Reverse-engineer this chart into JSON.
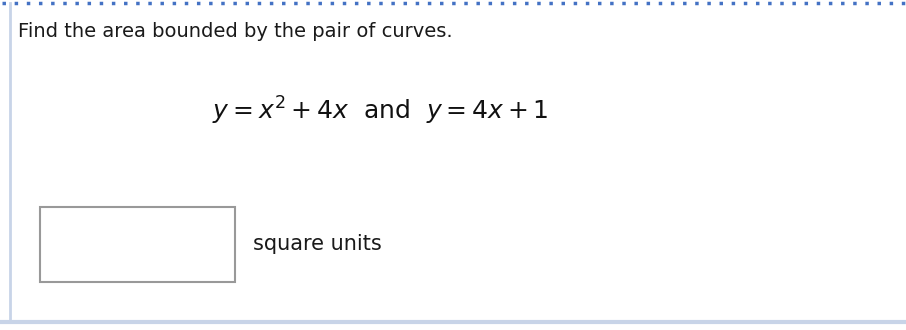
{
  "title": "Find the area bounded by the pair of curves.",
  "answer_label": "square units",
  "bg_color": "#ffffff",
  "title_color": "#1a1a1a",
  "eq_color": "#111111",
  "border_top_color": "#4472c4",
  "border_bottom_color": "#c8d4e8",
  "title_fontsize": 14,
  "eq_fontsize": 18,
  "label_fontsize": 15,
  "box_color": "#999999",
  "fig_width": 9.06,
  "fig_height": 3.3,
  "dpi": 100
}
